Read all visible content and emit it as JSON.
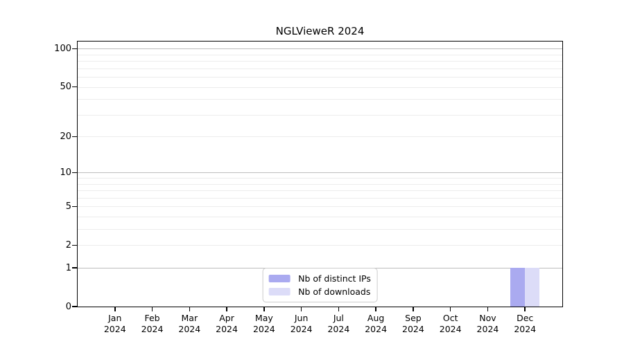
{
  "chart_data": {
    "type": "bar",
    "title": "NGLVieweR 2024",
    "x_axis": {
      "categories": [
        {
          "label": "Jan",
          "sub": "2024"
        },
        {
          "label": "Feb",
          "sub": "2024"
        },
        {
          "label": "Mar",
          "sub": "2024"
        },
        {
          "label": "Apr",
          "sub": "2024"
        },
        {
          "label": "May",
          "sub": "2024"
        },
        {
          "label": "Jun",
          "sub": "2024"
        },
        {
          "label": "Jul",
          "sub": "2024"
        },
        {
          "label": "Aug",
          "sub": "2024"
        },
        {
          "label": "Sep",
          "sub": "2024"
        },
        {
          "label": "Oct",
          "sub": "2024"
        },
        {
          "label": "Nov",
          "sub": "2024"
        },
        {
          "label": "Dec",
          "sub": "2024"
        }
      ]
    },
    "y_axis": {
      "scale": "log1p",
      "ticks": [
        0,
        1,
        2,
        5,
        10,
        20,
        50,
        100
      ],
      "emphasized_gridlines": [
        1,
        10,
        100
      ],
      "minor_gridlines": [
        2,
        3,
        4,
        5,
        6,
        7,
        8,
        9,
        20,
        30,
        40,
        50,
        60,
        70,
        80,
        90
      ],
      "ylim": [
        0,
        114
      ],
      "grid": true
    },
    "series": [
      {
        "name": "Nb of distinct IPs",
        "color": "#aaaaf0",
        "values": [
          0,
          0,
          0,
          0,
          0,
          0,
          0,
          0,
          0,
          0,
          0,
          1
        ]
      },
      {
        "name": "Nb of downloads",
        "color": "#dcdcf8",
        "values": [
          0,
          0,
          0,
          0,
          0,
          0,
          0,
          0,
          0,
          0,
          0,
          1
        ]
      }
    ],
    "legend": {
      "position": "bottom-center"
    }
  }
}
